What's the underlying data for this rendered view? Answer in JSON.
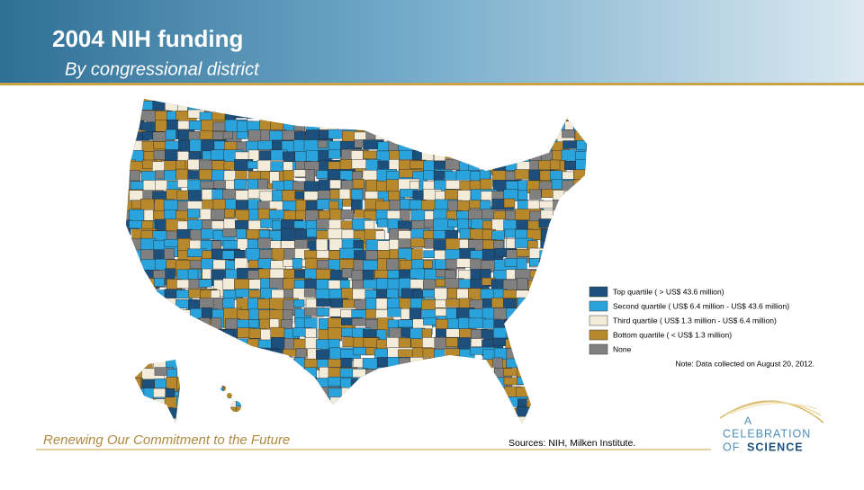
{
  "header": {
    "title": "2004 NIH funding",
    "subtitle": "By congressional district"
  },
  "legend": {
    "items": [
      {
        "label": "Top quartile ( > US$ 43.6 million)",
        "color": "#1d4f7c"
      },
      {
        "label": "Second quartile ( US$ 6.4 million - US$ 43.6 million)",
        "color": "#2aa3dc"
      },
      {
        "label": "Third quartile ( US$ 1.3 million - US$ 6.4 million)",
        "color": "#f4ecda"
      },
      {
        "label": "Bottom quartile ( < US$ 1.3 million)",
        "color": "#b8892c"
      },
      {
        "label": "None",
        "color": "#808080"
      }
    ],
    "note": "Note: Data collected on August 20, 2012."
  },
  "footer": {
    "tagline": "Renewing Our Commitment to the Future",
    "sources": "Sources: NIH, Milken Institute.",
    "logo": {
      "line1": "A",
      "line2": "CELEBRATION",
      "line3a": "OF",
      "line3b": "SCIENCE"
    }
  }
}
